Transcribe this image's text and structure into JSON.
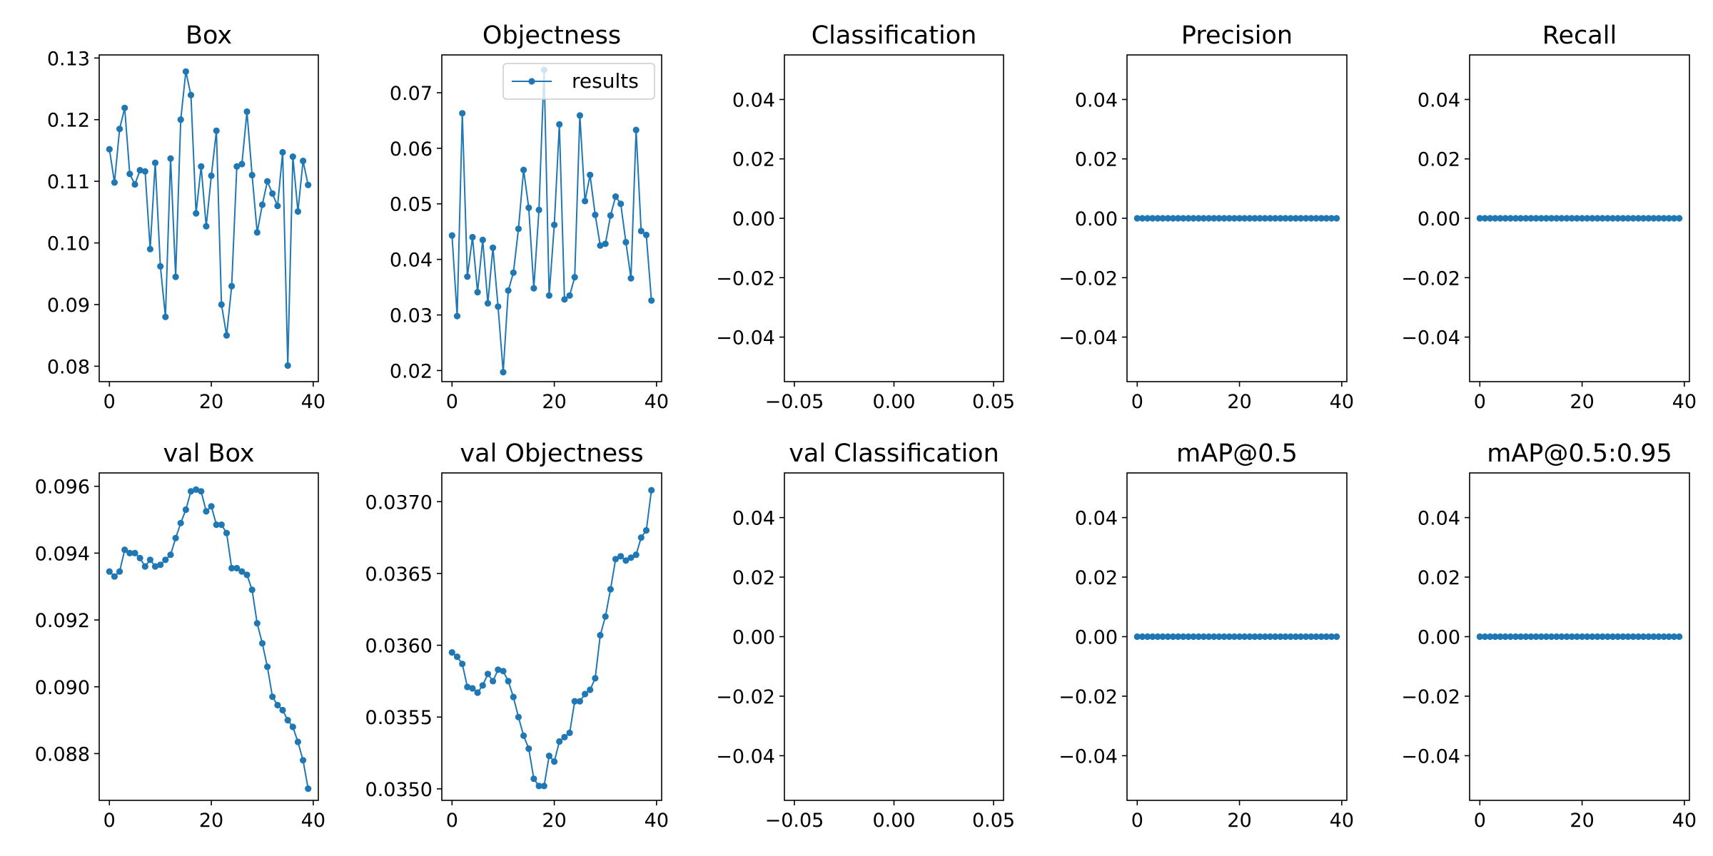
{
  "colors": {
    "series": "#1f77b4",
    "axes": "#000000",
    "background": "#ffffff",
    "legend_border": "#cccccc"
  },
  "chart_data": [
    {
      "type": "line",
      "title": "Box",
      "xlabel": "",
      "ylabel": "",
      "xlim": [
        -2,
        41
      ],
      "ylim": [
        0.0775,
        0.1305
      ],
      "xticks": [
        0,
        20,
        40
      ],
      "xtick_labels": [
        "0",
        "20",
        "40"
      ],
      "yticks": [
        0.08,
        0.09,
        0.1,
        0.11,
        0.12,
        0.13
      ],
      "ytick_labels": [
        "0.08",
        "0.09",
        "0.10",
        "0.11",
        "0.12",
        "0.13"
      ],
      "grid": false,
      "series": [
        {
          "x": [
            0,
            1,
            2,
            3,
            4,
            5,
            6,
            7,
            8,
            9,
            10,
            11,
            12,
            13,
            14,
            15,
            16,
            17,
            18,
            19,
            20,
            21,
            22,
            23,
            24,
            25,
            26,
            27,
            28,
            29,
            30,
            31,
            32,
            33,
            34,
            35,
            36,
            37,
            38,
            39
          ],
          "y": [
            0.1152,
            0.1098,
            0.1185,
            0.1219,
            0.1112,
            0.1095,
            0.1118,
            0.1116,
            0.099,
            0.113,
            0.0962,
            0.088,
            0.1137,
            0.0945,
            0.12,
            0.1278,
            0.124,
            0.1048,
            0.1124,
            0.1027,
            0.1109,
            0.1182,
            0.09,
            0.085,
            0.093,
            0.1124,
            0.1128,
            0.1213,
            0.111,
            0.1017,
            0.1062,
            0.11,
            0.108,
            0.106,
            0.1147,
            0.0801,
            0.114,
            0.1051,
            0.1133,
            0.1094
          ]
        }
      ]
    },
    {
      "type": "line",
      "title": "Objectness",
      "xlabel": "",
      "ylabel": "",
      "xlim": [
        -2,
        41
      ],
      "ylim": [
        0.018,
        0.0768
      ],
      "xticks": [
        0,
        20,
        40
      ],
      "xtick_labels": [
        "0",
        "20",
        "40"
      ],
      "yticks": [
        0.02,
        0.03,
        0.04,
        0.05,
        0.06,
        0.07
      ],
      "ytick_labels": [
        "0.02",
        "0.03",
        "0.04",
        "0.05",
        "0.06",
        "0.07"
      ],
      "grid": false,
      "legend": {
        "entries": [
          "results"
        ],
        "placement": "upper right"
      },
      "series": [
        {
          "name": "results",
          "x": [
            0,
            1,
            2,
            3,
            4,
            5,
            6,
            7,
            8,
            9,
            10,
            11,
            12,
            13,
            14,
            15,
            16,
            17,
            18,
            19,
            20,
            21,
            22,
            23,
            24,
            25,
            26,
            27,
            28,
            29,
            30,
            31,
            32,
            33,
            34,
            35,
            36,
            37,
            38,
            39
          ],
          "y": [
            0.0443,
            0.0298,
            0.0663,
            0.0369,
            0.044,
            0.0341,
            0.0435,
            0.0321,
            0.0421,
            0.0315,
            0.0197,
            0.0344,
            0.0376,
            0.0455,
            0.0561,
            0.0493,
            0.0348,
            0.0489,
            0.0741,
            0.0335,
            0.0462,
            0.0643,
            0.0328,
            0.0335,
            0.0368,
            0.0659,
            0.0505,
            0.0552,
            0.048,
            0.0425,
            0.0428,
            0.0479,
            0.0513,
            0.05,
            0.0431,
            0.0366,
            0.0633,
            0.0451,
            0.0444,
            0.0326
          ]
        }
      ]
    },
    {
      "type": "line",
      "title": "Classification",
      "xlabel": "",
      "ylabel": "",
      "xlim": [
        -0.055,
        0.055
      ],
      "ylim": [
        -0.055,
        0.055
      ],
      "xticks": [
        -0.05,
        0,
        0.05
      ],
      "xtick_labels": [
        "−0.05",
        "0.00",
        "0.05"
      ],
      "yticks": [
        -0.04,
        -0.02,
        0,
        0.02,
        0.04
      ],
      "ytick_labels": [
        "−0.04",
        "−0.02",
        "0.00",
        "0.02",
        "0.04"
      ],
      "grid": false,
      "series": [
        {
          "x": [],
          "y": []
        }
      ]
    },
    {
      "type": "line",
      "title": "Precision",
      "xlabel": "",
      "ylabel": "",
      "xlim": [
        -2,
        41
      ],
      "ylim": [
        -0.055,
        0.055
      ],
      "xticks": [
        0,
        20,
        40
      ],
      "xtick_labels": [
        "0",
        "20",
        "40"
      ],
      "yticks": [
        -0.04,
        -0.02,
        0,
        0.02,
        0.04
      ],
      "ytick_labels": [
        "−0.04",
        "−0.02",
        "0.00",
        "0.02",
        "0.04"
      ],
      "grid": false,
      "series": [
        {
          "x": [
            0,
            1,
            2,
            3,
            4,
            5,
            6,
            7,
            8,
            9,
            10,
            11,
            12,
            13,
            14,
            15,
            16,
            17,
            18,
            19,
            20,
            21,
            22,
            23,
            24,
            25,
            26,
            27,
            28,
            29,
            30,
            31,
            32,
            33,
            34,
            35,
            36,
            37,
            38,
            39
          ],
          "y": [
            0,
            0,
            0,
            0,
            0,
            0,
            0,
            0,
            0,
            0,
            0,
            0,
            0,
            0,
            0,
            0,
            0,
            0,
            0,
            0,
            0,
            0,
            0,
            0,
            0,
            0,
            0,
            0,
            0,
            0,
            0,
            0,
            0,
            0,
            0,
            0,
            0,
            0,
            0,
            0
          ]
        }
      ]
    },
    {
      "type": "line",
      "title": "Recall",
      "xlabel": "",
      "ylabel": "",
      "xlim": [
        -2,
        41
      ],
      "ylim": [
        -0.055,
        0.055
      ],
      "xticks": [
        0,
        20,
        40
      ],
      "xtick_labels": [
        "0",
        "20",
        "40"
      ],
      "yticks": [
        -0.04,
        -0.02,
        0,
        0.02,
        0.04
      ],
      "ytick_labels": [
        "−0.04",
        "−0.02",
        "0.00",
        "0.02",
        "0.04"
      ],
      "grid": false,
      "series": [
        {
          "x": [
            0,
            1,
            2,
            3,
            4,
            5,
            6,
            7,
            8,
            9,
            10,
            11,
            12,
            13,
            14,
            15,
            16,
            17,
            18,
            19,
            20,
            21,
            22,
            23,
            24,
            25,
            26,
            27,
            28,
            29,
            30,
            31,
            32,
            33,
            34,
            35,
            36,
            37,
            38,
            39
          ],
          "y": [
            0,
            0,
            0,
            0,
            0,
            0,
            0,
            0,
            0,
            0,
            0,
            0,
            0,
            0,
            0,
            0,
            0,
            0,
            0,
            0,
            0,
            0,
            0,
            0,
            0,
            0,
            0,
            0,
            0,
            0,
            0,
            0,
            0,
            0,
            0,
            0,
            0,
            0,
            0,
            0
          ]
        }
      ]
    },
    {
      "type": "line",
      "title": "val Box",
      "xlabel": "",
      "ylabel": "",
      "xlim": [
        -2,
        41
      ],
      "ylim": [
        0.0866,
        0.0964
      ],
      "xticks": [
        0,
        20,
        40
      ],
      "xtick_labels": [
        "0",
        "20",
        "40"
      ],
      "yticks": [
        0.088,
        0.09,
        0.092,
        0.094,
        0.096
      ],
      "ytick_labels": [
        "0.088",
        "0.090",
        "0.092",
        "0.094",
        "0.096"
      ],
      "grid": false,
      "series": [
        {
          "x": [
            0,
            1,
            2,
            3,
            4,
            5,
            6,
            7,
            8,
            9,
            10,
            11,
            12,
            13,
            14,
            15,
            16,
            17,
            18,
            19,
            20,
            21,
            22,
            23,
            24,
            25,
            26,
            27,
            28,
            29,
            30,
            31,
            32,
            33,
            34,
            35,
            36,
            37,
            38,
            39
          ],
          "y": [
            0.09345,
            0.0933,
            0.09345,
            0.0941,
            0.094,
            0.094,
            0.09385,
            0.0936,
            0.0938,
            0.0936,
            0.09365,
            0.0938,
            0.09395,
            0.09445,
            0.0949,
            0.0953,
            0.09585,
            0.0959,
            0.09585,
            0.09525,
            0.0954,
            0.09485,
            0.09485,
            0.0946,
            0.09355,
            0.09355,
            0.09345,
            0.09335,
            0.0929,
            0.0919,
            0.0913,
            0.0906,
            0.0897,
            0.08945,
            0.0893,
            0.089,
            0.0888,
            0.08835,
            0.0878,
            0.08695
          ]
        }
      ]
    },
    {
      "type": "line",
      "title": "val Objectness",
      "xlabel": "",
      "ylabel": "",
      "xlim": [
        -2,
        41
      ],
      "ylim": [
        0.03492,
        0.0372
      ],
      "xticks": [
        0,
        20,
        40
      ],
      "xtick_labels": [
        "0",
        "20",
        "40"
      ],
      "yticks": [
        0.035,
        0.0355,
        0.036,
        0.0365,
        0.037
      ],
      "ytick_labels": [
        "0.0350",
        "0.0355",
        "0.0360",
        "0.0365",
        "0.0370"
      ],
      "grid": false,
      "series": [
        {
          "x": [
            0,
            1,
            2,
            3,
            4,
            5,
            6,
            7,
            8,
            9,
            10,
            11,
            12,
            13,
            14,
            15,
            16,
            17,
            18,
            19,
            20,
            21,
            22,
            23,
            24,
            25,
            26,
            27,
            28,
            29,
            30,
            31,
            32,
            33,
            34,
            35,
            36,
            37,
            38,
            39
          ],
          "y": [
            0.03595,
            0.03592,
            0.03587,
            0.03571,
            0.0357,
            0.03567,
            0.03572,
            0.0358,
            0.03575,
            0.03583,
            0.03582,
            0.03575,
            0.03564,
            0.0355,
            0.03537,
            0.03528,
            0.03507,
            0.03502,
            0.03502,
            0.03523,
            0.03519,
            0.03533,
            0.03536,
            0.03539,
            0.03561,
            0.03561,
            0.03566,
            0.03569,
            0.03577,
            0.03607,
            0.0362,
            0.03639,
            0.0366,
            0.03662,
            0.03659,
            0.03661,
            0.03663,
            0.03675,
            0.0368,
            0.03708
          ]
        }
      ]
    },
    {
      "type": "line",
      "title": "val Classification",
      "xlabel": "",
      "ylabel": "",
      "xlim": [
        -0.055,
        0.055
      ],
      "ylim": [
        -0.055,
        0.055
      ],
      "xticks": [
        -0.05,
        0,
        0.05
      ],
      "xtick_labels": [
        "−0.05",
        "0.00",
        "0.05"
      ],
      "yticks": [
        -0.04,
        -0.02,
        0,
        0.02,
        0.04
      ],
      "ytick_labels": [
        "−0.04",
        "−0.02",
        "0.00",
        "0.02",
        "0.04"
      ],
      "grid": false,
      "series": [
        {
          "x": [],
          "y": []
        }
      ]
    },
    {
      "type": "line",
      "title": "mAP@0.5",
      "xlabel": "",
      "ylabel": "",
      "xlim": [
        -2,
        41
      ],
      "ylim": [
        -0.055,
        0.055
      ],
      "xticks": [
        0,
        20,
        40
      ],
      "xtick_labels": [
        "0",
        "20",
        "40"
      ],
      "yticks": [
        -0.04,
        -0.02,
        0,
        0.02,
        0.04
      ],
      "ytick_labels": [
        "−0.04",
        "−0.02",
        "0.00",
        "0.02",
        "0.04"
      ],
      "grid": false,
      "series": [
        {
          "x": [
            0,
            1,
            2,
            3,
            4,
            5,
            6,
            7,
            8,
            9,
            10,
            11,
            12,
            13,
            14,
            15,
            16,
            17,
            18,
            19,
            20,
            21,
            22,
            23,
            24,
            25,
            26,
            27,
            28,
            29,
            30,
            31,
            32,
            33,
            34,
            35,
            36,
            37,
            38,
            39
          ],
          "y": [
            0,
            0,
            0,
            0,
            0,
            0,
            0,
            0,
            0,
            0,
            0,
            0,
            0,
            0,
            0,
            0,
            0,
            0,
            0,
            0,
            0,
            0,
            0,
            0,
            0,
            0,
            0,
            0,
            0,
            0,
            0,
            0,
            0,
            0,
            0,
            0,
            0,
            0,
            0,
            0
          ]
        }
      ]
    },
    {
      "type": "line",
      "title": "mAP@0.5:0.95",
      "xlabel": "",
      "ylabel": "",
      "xlim": [
        -2,
        41
      ],
      "ylim": [
        -0.055,
        0.055
      ],
      "xticks": [
        0,
        20,
        40
      ],
      "xtick_labels": [
        "0",
        "20",
        "40"
      ],
      "yticks": [
        -0.04,
        -0.02,
        0,
        0.02,
        0.04
      ],
      "ytick_labels": [
        "−0.04",
        "−0.02",
        "0.00",
        "0.02",
        "0.04"
      ],
      "grid": false,
      "series": [
        {
          "x": [
            0,
            1,
            2,
            3,
            4,
            5,
            6,
            7,
            8,
            9,
            10,
            11,
            12,
            13,
            14,
            15,
            16,
            17,
            18,
            19,
            20,
            21,
            22,
            23,
            24,
            25,
            26,
            27,
            28,
            29,
            30,
            31,
            32,
            33,
            34,
            35,
            36,
            37,
            38,
            39
          ],
          "y": [
            0,
            0,
            0,
            0,
            0,
            0,
            0,
            0,
            0,
            0,
            0,
            0,
            0,
            0,
            0,
            0,
            0,
            0,
            0,
            0,
            0,
            0,
            0,
            0,
            0,
            0,
            0,
            0,
            0,
            0,
            0,
            0,
            0,
            0,
            0,
            0,
            0,
            0,
            0,
            0
          ]
        }
      ]
    }
  ]
}
